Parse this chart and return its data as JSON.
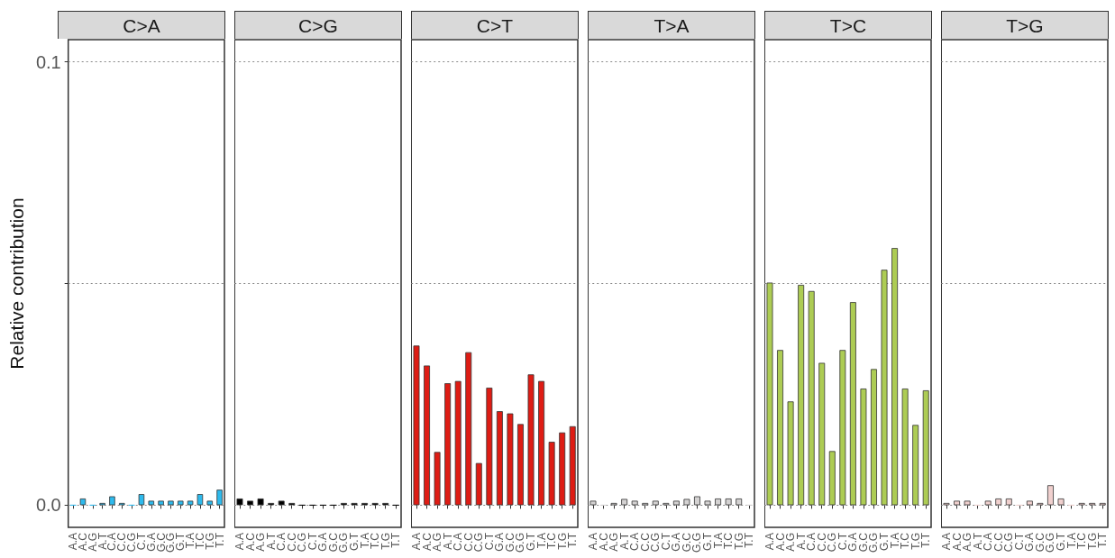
{
  "chart_data": [
    {
      "type": "bar",
      "title": "C>A",
      "ylabel": "Relative contribution",
      "categories": [
        "A.A",
        "A.C",
        "A.G",
        "A.T",
        "C.A",
        "C.C",
        "C.G",
        "C.T",
        "G.A",
        "G.C",
        "G.G",
        "G.T",
        "T.A",
        "T.C",
        "T.G",
        "T.T"
      ],
      "values": [
        0,
        0.0015,
        0,
        0.0005,
        0.002,
        0.0005,
        0,
        0.0025,
        0.001,
        0.001,
        0.001,
        0.001,
        0.001,
        0.0025,
        0.001,
        0.0035
      ],
      "color": "#2ebaed",
      "ylim": [
        -0.005,
        0.105
      ],
      "yticks": [
        {
          "value": 0,
          "label": "0.0"
        },
        {
          "value": 0.05,
          "label": null
        },
        {
          "value": 0.1,
          "label": "0.1"
        }
      ],
      "grid": "y"
    },
    {
      "type": "bar",
      "title": "C>G",
      "categories": [
        "A.A",
        "A.C",
        "A.G",
        "A.T",
        "C.A",
        "C.C",
        "C.G",
        "C.T",
        "G.A",
        "G.C",
        "G.G",
        "G.T",
        "T.A",
        "T.C",
        "T.G",
        "T.T"
      ],
      "values": [
        0.0015,
        0.001,
        0.0015,
        0.0005,
        0.001,
        0.0005,
        0,
        0,
        0,
        0,
        0.0005,
        0.0005,
        0.0005,
        0.0005,
        0.0005,
        0
      ],
      "color": "#000000",
      "ylim": [
        -0.005,
        0.105
      ],
      "yticks": [
        0,
        0.05,
        0.1
      ],
      "grid": "y",
      "tick_labels": "x"
    },
    {
      "type": "bar",
      "title": "C>T",
      "categories": [
        "A.A",
        "A.C",
        "A.G",
        "A.T",
        "C.A",
        "C.C",
        "C.G",
        "C.T",
        "G.A",
        "G.C",
        "G.G",
        "G.T",
        "T.A",
        "T.C",
        "T.G",
        "T.T"
      ],
      "values": [
        0.036,
        0.0315,
        0.012,
        0.0275,
        0.028,
        0.0345,
        0.0095,
        0.0265,
        0.0212,
        0.0207,
        0.0183,
        0.0295,
        0.028,
        0.0143,
        0.0164,
        0.0178
      ],
      "color": "#de1c14",
      "ylim": [
        -0.005,
        0.105
      ],
      "yticks": [
        0,
        0.05,
        0.1
      ],
      "grid": "y",
      "tick_labels": "x"
    },
    {
      "type": "bar",
      "title": "T>A",
      "categories": [
        "A.A",
        "A.C",
        "A.G",
        "A.T",
        "C.A",
        "C.C",
        "C.G",
        "C.T",
        "G.A",
        "G.C",
        "G.G",
        "G.T",
        "T.A",
        "T.C",
        "T.G",
        "T.T"
      ],
      "values": [
        0.001,
        0,
        0.0005,
        0.0014,
        0.001,
        0.0005,
        0.001,
        0.0005,
        0.001,
        0.0014,
        0.002,
        0.001,
        0.0015,
        0.0015,
        0.0015,
        0
      ],
      "color": "#d4d2d2",
      "ylim": [
        -0.005,
        0.105
      ],
      "yticks": [
        0,
        0.05,
        0.1
      ],
      "grid": "y",
      "tick_labels": "x"
    },
    {
      "type": "bar",
      "title": "T>C",
      "categories": [
        "A.A",
        "A.C",
        "A.G",
        "A.T",
        "C.A",
        "C.C",
        "C.G",
        "C.T",
        "G.A",
        "G.C",
        "G.G",
        "G.T",
        "T.A",
        "T.C",
        "T.G",
        "T.T"
      ],
      "values": [
        0.0502,
        0.035,
        0.0234,
        0.0497,
        0.0483,
        0.0321,
        0.0122,
        0.035,
        0.0458,
        0.0263,
        0.0307,
        0.0531,
        0.058,
        0.0263,
        0.0181,
        0.0259
      ],
      "color": "#adcc54",
      "ylim": [
        -0.005,
        0.105
      ],
      "yticks": [
        0,
        0.05,
        0.1
      ],
      "grid": "y",
      "tick_labels": "x"
    },
    {
      "type": "bar",
      "title": "T>G",
      "categories": [
        "A.A",
        "A.C",
        "A.G",
        "A.T",
        "C.A",
        "C.C",
        "C.G",
        "C.T",
        "G.A",
        "G.C",
        "G.G",
        "G.T",
        "T.A",
        "T.C",
        "T.G",
        "T.T"
      ],
      "values": [
        0.0005,
        0.001,
        0.001,
        0,
        0.001,
        0.0015,
        0.0015,
        0,
        0.001,
        0.0005,
        0.0045,
        0.0015,
        0,
        0.0005,
        0.0005,
        0.0005
      ],
      "color": "#f0d0ce",
      "ylim": [
        -0.005,
        0.105
      ],
      "yticks": [
        0,
        0.05,
        0.1
      ],
      "grid": "y",
      "tick_labels": "x"
    }
  ]
}
